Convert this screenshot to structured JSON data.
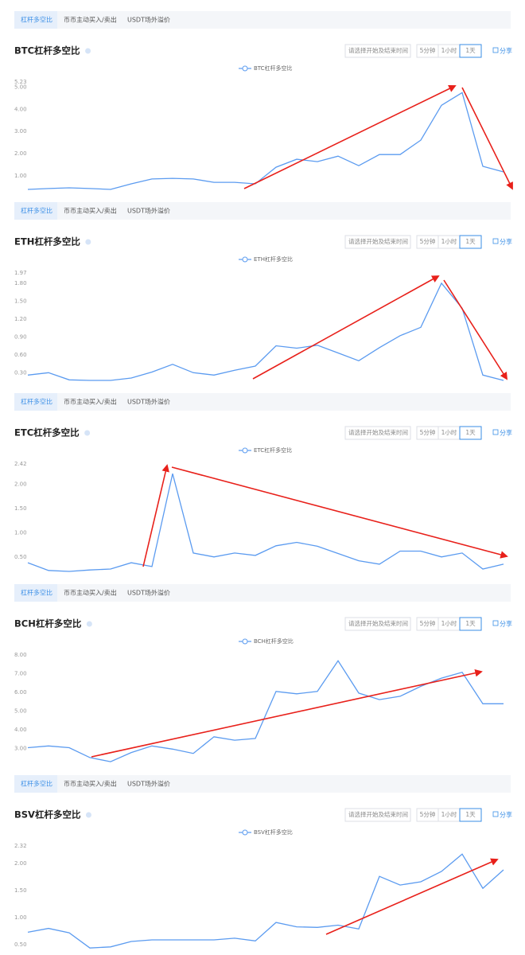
{
  "chart_data": [
    {
      "type": "line",
      "tabs": [
        "杠杆多空比",
        "币币主动买入/卖出",
        "USDT场外溢价"
      ],
      "title": "BTC杠杆多空比",
      "date_picker": "请选择开始及结束时间",
      "intervals": [
        "5分钟",
        "1小时",
        "1天"
      ],
      "share": "分享",
      "series": [
        {
          "name": "BTC杠杆多空比",
          "color": "#5b9bf0",
          "values": [
            0.39,
            0.43,
            0.46,
            0.43,
            0.39,
            0.64,
            0.86,
            0.89,
            0.86,
            0.71,
            0.71,
            0.64,
            1.39,
            1.75,
            1.64,
            1.89,
            1.46,
            1.96,
            1.96,
            2.61,
            4.18,
            4.75,
            1.43,
            1.18
          ]
        }
      ],
      "ylim": [
        0.39,
        5.23
      ],
      "yticks": [
        {
          "value": 1,
          "label": "1.00"
        },
        {
          "value": 2,
          "label": "2.00"
        },
        {
          "value": 3,
          "label": "3.00"
        },
        {
          "value": 4,
          "label": "4.00"
        },
        {
          "value": 5,
          "label": "5.00"
        },
        5.23
      ]
    },
    {
      "type": "line",
      "tabs": [
        "杠杆多空比",
        "币币主动买入/卖出",
        "USDT场外溢价"
      ],
      "title": "ETH杠杆多空比",
      "date_picker": "请选择开始及结束时间",
      "intervals": [
        "5分钟",
        "1小时",
        "1天"
      ],
      "share": "分享",
      "series": [
        {
          "name": "ETH杠杆多空比",
          "color": "#5b9bf0",
          "values": [
            0.26,
            0.3,
            0.18,
            0.17,
            0.17,
            0.21,
            0.31,
            0.44,
            0.3,
            0.26,
            0.34,
            0.41,
            0.75,
            0.71,
            0.76,
            0.63,
            0.5,
            0.72,
            0.92,
            1.06,
            1.8,
            1.38,
            0.26,
            0.17
          ]
        }
      ],
      "ylim": [
        0.17,
        1.97
      ],
      "yticks": [
        {
          "value": 0.3,
          "label": "0.30"
        },
        {
          "value": 0.6,
          "label": "0.60"
        },
        {
          "value": 0.9,
          "label": "0.90"
        },
        {
          "value": 1.2,
          "label": "1.20"
        },
        {
          "value": 1.5,
          "label": "1.50"
        },
        {
          "value": 1.8,
          "label": "1.80"
        },
        1.97
      ]
    },
    {
      "type": "line",
      "tabs": [
        "杠杆多空比",
        "币币主动买入/卖出",
        "USDT场外溢价"
      ],
      "title": "ETC杠杆多空比",
      "date_picker": "请选择开始及结束时间",
      "intervals": [
        "5分钟",
        "1小时",
        "1天"
      ],
      "share": "分享",
      "series": [
        {
          "name": "ETC杠杆多空比",
          "color": "#5b9bf0",
          "values": [
            0.38,
            0.22,
            0.2,
            0.23,
            0.25,
            0.38,
            0.3,
            2.22,
            0.58,
            0.5,
            0.58,
            0.53,
            0.73,
            0.8,
            0.72,
            0.57,
            0.42,
            0.35,
            0.62,
            0.62,
            0.5,
            0.58,
            0.25,
            0.35
          ]
        }
      ],
      "ylim": [
        0.2,
        2.42
      ],
      "yticks": [
        {
          "value": 0.5,
          "label": "0.50"
        },
        {
          "value": 1,
          "label": "1.00"
        },
        {
          "value": 1.5,
          "label": "1.50"
        },
        {
          "value": 2,
          "label": "2.00"
        },
        2.42
      ]
    },
    {
      "type": "line",
      "tabs": [
        "杠杆多空比",
        "币币主动买入/卖出",
        "USDT场外溢价"
      ],
      "title": "BCH杠杆多空比",
      "date_picker": "请选择开始及结束时间",
      "intervals": [
        "5分钟",
        "1小时",
        "1天"
      ],
      "share": "分享",
      "series": [
        {
          "name": "BCH杠杆多空比",
          "color": "#5b9bf0",
          "values": [
            3.04,
            3.13,
            3.04,
            2.51,
            2.29,
            2.78,
            3.13,
            2.96,
            2.73,
            3.62,
            3.44,
            3.53,
            6.05,
            5.92,
            6.05,
            7.69,
            5.96,
            5.61,
            5.79,
            6.32,
            6.76,
            7.07,
            5.39,
            5.39
          ]
        }
      ],
      "ylim": [
        2.25,
        8
      ],
      "yticks": [
        {
          "value": 3,
          "label": "3.00"
        },
        {
          "value": 4,
          "label": "4.00"
        },
        {
          "value": 5,
          "label": "5.00"
        },
        {
          "value": 6,
          "label": "6.00"
        },
        {
          "value": 7,
          "label": "7.00"
        },
        {
          "value": 8,
          "label": "8.00"
        }
      ]
    },
    {
      "type": "line",
      "tabs": [
        "杠杆多空比",
        "币币主动买入/卖出",
        "USDT场外溢价"
      ],
      "title": "BSV杠杆多空比",
      "date_picker": "请选择开始及结束时间",
      "intervals": [
        "5分钟",
        "1小时",
        "1天"
      ],
      "share": "分享",
      "series": [
        {
          "name": "BSV杠杆多空比",
          "color": "#5b9bf0",
          "values": [
            0.73,
            0.8,
            0.72,
            0.44,
            0.46,
            0.56,
            0.59,
            0.59,
            0.59,
            0.59,
            0.62,
            0.57,
            0.91,
            0.83,
            0.82,
            0.86,
            0.79,
            1.76,
            1.6,
            1.66,
            1.85,
            2.17,
            1.54,
            1.88
          ]
        }
      ],
      "ylim": [
        0.34,
        2.32
      ],
      "yticks": [
        {
          "value": 0.5,
          "label": "0.50"
        },
        {
          "value": 1,
          "label": "1.00"
        },
        {
          "value": 1.5,
          "label": "1.50"
        },
        {
          "value": 2,
          "label": "2.00"
        },
        2.32
      ]
    }
  ]
}
